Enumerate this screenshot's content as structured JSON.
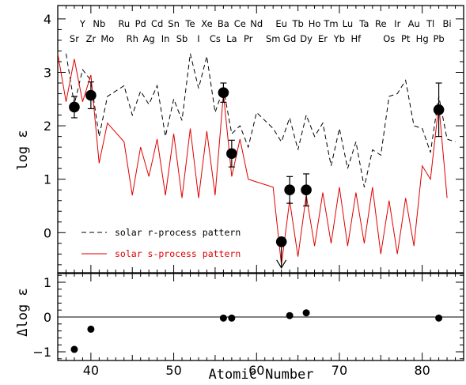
{
  "chart_data": [
    {
      "type": "line",
      "xlabel": "",
      "ylabel": "log ε",
      "xlim": [
        36,
        85
      ],
      "ylim": [
        -0.75,
        4.25
      ],
      "x_ticks": [
        40,
        50,
        60,
        70,
        80
      ],
      "y_ticks": [
        0,
        1,
        2,
        3,
        4
      ],
      "element_labels_top": [
        {
          "z": 39,
          "symbol": "Y"
        },
        {
          "z": 41,
          "symbol": "Nb"
        },
        {
          "z": 44,
          "symbol": "Ru"
        },
        {
          "z": 46,
          "symbol": "Pd"
        },
        {
          "z": 48,
          "symbol": "Cd"
        },
        {
          "z": 50,
          "symbol": "Sn"
        },
        {
          "z": 52,
          "symbol": "Te"
        },
        {
          "z": 54,
          "symbol": "Xe"
        },
        {
          "z": 56,
          "symbol": "Ba"
        },
        {
          "z": 58,
          "symbol": "Ce"
        },
        {
          "z": 60,
          "symbol": "Nd"
        },
        {
          "z": 63,
          "symbol": "Eu"
        },
        {
          "z": 65,
          "symbol": "Tb"
        },
        {
          "z": 67,
          "symbol": "Ho"
        },
        {
          "z": 69,
          "symbol": "Tm"
        },
        {
          "z": 71,
          "symbol": "Lu"
        },
        {
          "z": 73,
          "symbol": "Ta"
        },
        {
          "z": 75,
          "symbol": "Re"
        },
        {
          "z": 77,
          "symbol": "Ir"
        },
        {
          "z": 79,
          "symbol": "Au"
        },
        {
          "z": 81,
          "symbol": "Tl"
        },
        {
          "z": 83,
          "symbol": "Bi"
        }
      ],
      "element_labels_bottom": [
        {
          "z": 38,
          "symbol": "Sr"
        },
        {
          "z": 40,
          "symbol": "Zr"
        },
        {
          "z": 42,
          "symbol": "Mo"
        },
        {
          "z": 45,
          "symbol": "Rh"
        },
        {
          "z": 47,
          "symbol": "Ag"
        },
        {
          "z": 49,
          "symbol": "In"
        },
        {
          "z": 51,
          "symbol": "Sb"
        },
        {
          "z": 53,
          "symbol": "I"
        },
        {
          "z": 55,
          "symbol": "Cs"
        },
        {
          "z": 57,
          "symbol": "La"
        },
        {
          "z": 59,
          "symbol": "Pr"
        },
        {
          "z": 62,
          "symbol": "Sm"
        },
        {
          "z": 64,
          "symbol": "Gd"
        },
        {
          "z": 66,
          "symbol": "Dy"
        },
        {
          "z": 68,
          "symbol": "Er"
        },
        {
          "z": 70,
          "symbol": "Yb"
        },
        {
          "z": 72,
          "symbol": "Hf"
        },
        {
          "z": 76,
          "symbol": "Os"
        },
        {
          "z": 78,
          "symbol": "Pt"
        },
        {
          "z": 80,
          "symbol": "Hg"
        },
        {
          "z": 82,
          "symbol": "Pb"
        }
      ],
      "series": [
        {
          "name": "solar r-process pattern",
          "style": "dashed",
          "color": "#000000",
          "x": [
            37,
            38,
            39,
            40,
            41,
            42,
            44,
            45,
            46,
            47,
            48,
            49,
            50,
            51,
            52,
            53,
            54,
            55,
            56,
            57,
            58,
            59,
            60,
            62,
            63,
            64,
            65,
            66,
            67,
            68,
            69,
            70,
            71,
            72,
            73,
            74,
            75,
            76,
            77,
            78,
            79,
            80,
            81,
            82,
            83,
            84
          ],
          "y": [
            3.35,
            2.4,
            3.05,
            2.85,
            1.8,
            2.55,
            2.75,
            2.2,
            2.65,
            2.4,
            2.75,
            1.8,
            2.5,
            2.1,
            3.35,
            2.7,
            3.3,
            2.25,
            2.7,
            1.85,
            2.0,
            1.6,
            2.25,
            1.95,
            1.7,
            2.15,
            1.55,
            2.2,
            1.8,
            2.05,
            1.25,
            1.95,
            1.2,
            1.7,
            0.85,
            1.55,
            1.45,
            2.55,
            2.6,
            2.85,
            2.0,
            1.95,
            1.5,
            2.55,
            1.75,
            1.7
          ]
        },
        {
          "name": "solar s-process pattern",
          "style": "solid",
          "color": "#e00000",
          "x": [
            36,
            37,
            38,
            39,
            40,
            41,
            42,
            44,
            45,
            46,
            47,
            48,
            49,
            50,
            51,
            52,
            53,
            54,
            55,
            56,
            57,
            58,
            59,
            60,
            62,
            63,
            64,
            65,
            66,
            67,
            68,
            69,
            70,
            71,
            72,
            73,
            74,
            75,
            76,
            77,
            78,
            79,
            80,
            81,
            82,
            83
          ],
          "y": [
            3.35,
            2.45,
            3.25,
            2.45,
            2.95,
            1.3,
            2.05,
            1.7,
            0.7,
            1.6,
            1.05,
            1.75,
            0.7,
            1.85,
            0.65,
            1.95,
            0.65,
            1.9,
            0.7,
            2.6,
            1.05,
            1.75,
            1.0,
            0.95,
            0.85,
            -0.6,
            0.6,
            -0.45,
            0.7,
            -0.25,
            0.75,
            -0.2,
            0.85,
            -0.25,
            0.75,
            -0.2,
            0.85,
            -0.4,
            0.6,
            -0.4,
            0.65,
            -0.25,
            1.25,
            1.0,
            2.4,
            0.65
          ]
        }
      ],
      "observed": [
        {
          "z": 38,
          "y": 2.35,
          "err": 0.2
        },
        {
          "z": 40,
          "y": 2.57,
          "err": 0.25
        },
        {
          "z": 56,
          "y": 2.62,
          "err": 0.18
        },
        {
          "z": 57,
          "y": 1.48,
          "err": 0.25
        },
        {
          "z": 63,
          "y": -0.17,
          "upper_limit": true
        },
        {
          "z": 64,
          "y": 0.8,
          "err": 0.25
        },
        {
          "z": 66,
          "y": 0.8,
          "err": 0.3
        },
        {
          "z": 82,
          "y": 2.3,
          "err": 0.5
        }
      ],
      "legend": {
        "position": "bottom-left",
        "entries": [
          "solar r-process pattern",
          "solar s-process pattern"
        ]
      }
    },
    {
      "type": "scatter",
      "xlabel": "Atomic Number",
      "ylabel": "Δlog ε",
      "xlim": [
        36,
        85
      ],
      "ylim": [
        -1.25,
        1.25
      ],
      "x_ticks": [
        40,
        50,
        60,
        70,
        80
      ],
      "y_ticks": [
        -1,
        0,
        1
      ],
      "reference_line_y": 0,
      "points": [
        {
          "z": 38,
          "y": -0.93
        },
        {
          "z": 40,
          "y": -0.35
        },
        {
          "z": 56,
          "y": -0.03
        },
        {
          "z": 57,
          "y": -0.03
        },
        {
          "z": 64,
          "y": 0.04
        },
        {
          "z": 66,
          "y": 0.12
        },
        {
          "z": 82,
          "y": -0.03
        }
      ]
    }
  ]
}
